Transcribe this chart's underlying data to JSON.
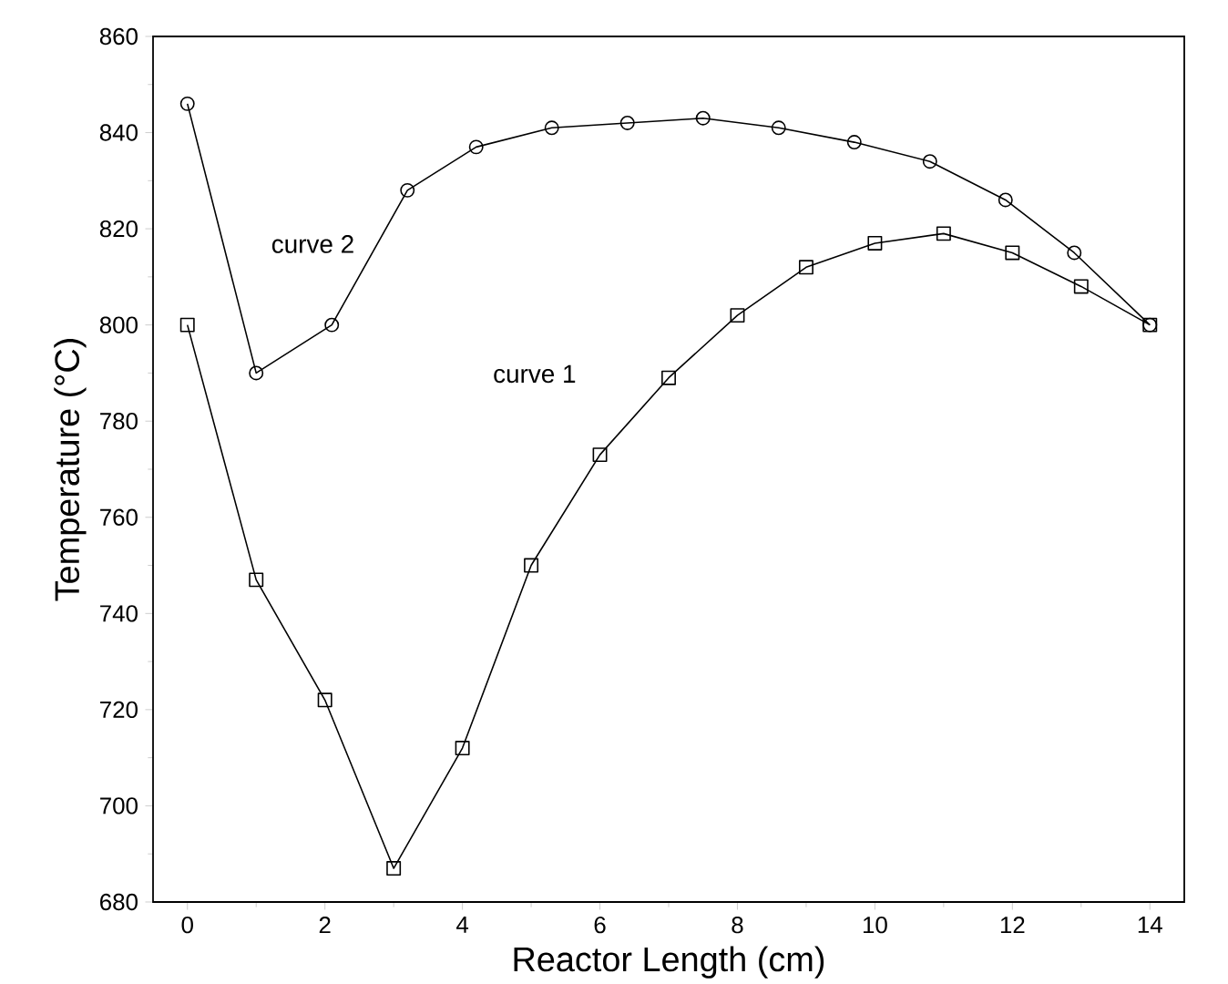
{
  "chart_data": {
    "type": "line",
    "xlabel": "Reactor Length (cm)",
    "ylabel": "Temperature (°C)",
    "xlim": [
      -0.5,
      14.5
    ],
    "xticks": [
      0,
      2,
      4,
      6,
      8,
      10,
      12,
      14
    ],
    "ylim": [
      680,
      860
    ],
    "yticks": [
      680,
      700,
      720,
      740,
      760,
      780,
      800,
      820,
      840,
      860
    ],
    "grid": false,
    "line_style": "solid",
    "series": [
      {
        "color": "#000000",
        "marker": "square",
        "x": [
          0,
          1,
          2,
          3,
          4,
          5,
          6,
          7,
          8,
          9,
          10,
          11,
          12,
          13,
          14
        ],
        "values": [
          800,
          747,
          722,
          687,
          712,
          750,
          773,
          789,
          802,
          812,
          817,
          819,
          815,
          808,
          800
        ]
      },
      {
        "color": "#000000",
        "marker": "circle",
        "x": [
          0,
          1,
          2.1,
          3.2,
          4.2,
          5.3,
          6.4,
          7.5,
          8.6,
          9.7,
          10.8,
          11.9,
          12.9,
          14
        ],
        "values": [
          846,
          790,
          800,
          828,
          837,
          841,
          842,
          843,
          841,
          838,
          834,
          826,
          815,
          800
        ]
      }
    ],
    "annotations": [
      "curve 2",
      "curve 1"
    ]
  }
}
